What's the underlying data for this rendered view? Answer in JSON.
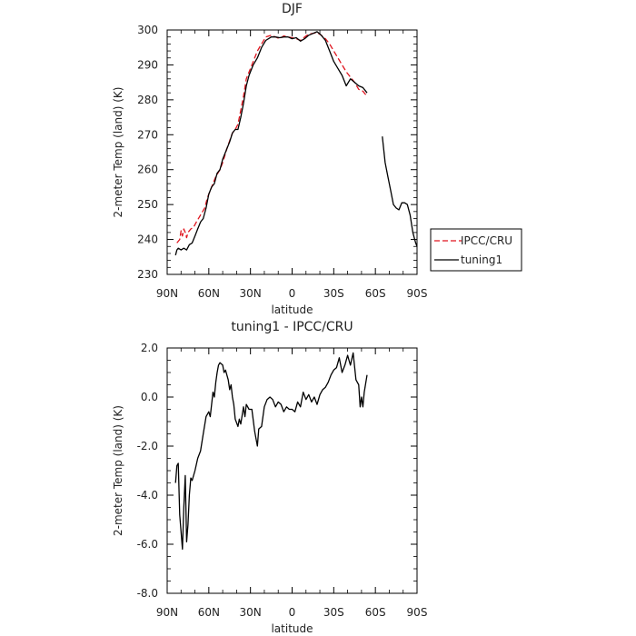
{
  "chart_data": [
    {
      "type": "line",
      "title": "DJF",
      "xlabel": "latitude",
      "ylabel": "2-meter Temp (land) (K)",
      "xlim": [
        90,
        -90
      ],
      "ylim": [
        230,
        300
      ],
      "x_tick_values": [
        90,
        60,
        30,
        0,
        -30,
        -60,
        -90
      ],
      "x_tick_labels": [
        "90N",
        "60N",
        "30N",
        "0",
        "30S",
        "60S",
        "90S"
      ],
      "y_tick_values": [
        230,
        240,
        250,
        260,
        270,
        280,
        290,
        300
      ],
      "y_tick_labels": [
        "230",
        "240",
        "250",
        "260",
        "270",
        "280",
        "290",
        "300"
      ],
      "legend_position": "right",
      "series": [
        {
          "name": "IPCC/CRU",
          "color": "#e0141e",
          "dash": "dashed",
          "segments": [
            [
              [
                83,
                239
              ],
              [
                81,
                240
              ],
              [
                80,
                242.5
              ],
              [
                79,
                241
              ],
              [
                78,
                243
              ],
              [
                77,
                242
              ],
              [
                76,
                240.5
              ],
              [
                75,
                242
              ],
              [
                73,
                243
              ],
              [
                71,
                243.5
              ],
              [
                69,
                245
              ],
              [
                66,
                247
              ],
              [
                63,
                249
              ],
              [
                61,
                252
              ],
              [
                59,
                254
              ],
              [
                57,
                256
              ],
              [
                55,
                258
              ],
              [
                52,
                260
              ],
              [
                50,
                262
              ],
              [
                47,
                266
              ],
              [
                43,
                270.5
              ],
              [
                41,
                271.5
              ],
              [
                39,
                273
              ],
              [
                37,
                277
              ],
              [
                35,
                281
              ],
              [
                33,
                286
              ],
              [
                30,
                289
              ],
              [
                27,
                292
              ],
              [
                25,
                294
              ],
              [
                22,
                296
              ],
              [
                19,
                298
              ],
              [
                15,
                298.5
              ],
              [
                12,
                298
              ],
              [
                9,
                297.5
              ],
              [
                6,
                298.3
              ],
              [
                3,
                298
              ],
              [
                0,
                297.8
              ],
              [
                -3,
                297.5
              ],
              [
                -6,
                297
              ],
              [
                -9,
                298
              ],
              [
                -12,
                298.8
              ],
              [
                -15,
                299
              ],
              [
                -18,
                299.3
              ],
              [
                -21,
                298.5
              ],
              [
                -24,
                297.5
              ],
              [
                -27,
                296
              ],
              [
                -30,
                294
              ],
              [
                -33,
                292
              ],
              [
                -36,
                290
              ],
              [
                -39,
                288
              ],
              [
                -42,
                286.5
              ],
              [
                -45,
                285
              ],
              [
                -48,
                283
              ],
              [
                -51,
                282.5
              ],
              [
                -54,
                281
              ]
            ]
          ]
        },
        {
          "name": "tuning1",
          "color": "#000000",
          "dash": "solid",
          "segments": [
            [
              [
                84,
                235.5
              ],
              [
                83,
                237
              ],
              [
                82,
                237.5
              ],
              [
                80,
                237
              ],
              [
                78,
                237.5
              ],
              [
                76,
                237
              ],
              [
                74,
                238.5
              ],
              [
                72,
                239
              ],
              [
                70,
                241
              ],
              [
                68,
                243
              ],
              [
                66,
                245
              ],
              [
                64,
                246
              ],
              [
                62,
                249
              ],
              [
                60,
                253
              ],
              [
                58,
                255
              ],
              [
                56,
                256
              ],
              [
                54,
                259
              ],
              [
                52,
                260
              ],
              [
                50,
                263
              ],
              [
                47,
                266
              ],
              [
                45,
                268
              ],
              [
                43,
                270.5
              ],
              [
                41,
                271.5
              ],
              [
                39,
                271.5
              ],
              [
                37,
                275
              ],
              [
                35,
                279
              ],
              [
                33,
                284
              ],
              [
                31,
                287
              ],
              [
                28,
                290
              ],
              [
                25,
                292
              ],
              [
                22,
                295
              ],
              [
                19,
                297
              ],
              [
                15,
                298
              ],
              [
                12,
                298
              ],
              [
                9,
                297.8
              ],
              [
                6,
                298
              ],
              [
                3,
                298
              ],
              [
                0,
                297.5
              ],
              [
                -3,
                297.8
              ],
              [
                -6,
                296.8
              ],
              [
                -9,
                297.5
              ],
              [
                -12,
                298.5
              ],
              [
                -15,
                299
              ],
              [
                -18,
                299.5
              ],
              [
                -21,
                298.5
              ],
              [
                -24,
                297
              ],
              [
                -27,
                294
              ],
              [
                -30,
                291
              ],
              [
                -33,
                289
              ],
              [
                -36,
                287
              ],
              [
                -39,
                284
              ],
              [
                -42,
                286
              ],
              [
                -45,
                285
              ],
              [
                -48,
                284
              ],
              [
                -51,
                283.5
              ],
              [
                -54,
                282
              ]
            ],
            [
              [
                -65,
                269.5
              ],
              [
                -67,
                262
              ],
              [
                -69,
                258
              ],
              [
                -71,
                254
              ],
              [
                -73,
                250
              ],
              [
                -75,
                249
              ],
              [
                -77,
                248.5
              ],
              [
                -79,
                250.5
              ],
              [
                -81,
                250.5
              ],
              [
                -83,
                250
              ],
              [
                -85,
                247
              ],
              [
                -87,
                242
              ],
              [
                -89,
                239
              ],
              [
                -90,
                238
              ]
            ]
          ]
        }
      ]
    },
    {
      "type": "line",
      "title": "tuning1 - IPCC/CRU",
      "xlabel": "latitude",
      "ylabel": "2-meter Temp (land) (K)",
      "xlim": [
        90,
        -90
      ],
      "ylim": [
        -8,
        2
      ],
      "x_tick_values": [
        90,
        60,
        30,
        0,
        -30,
        -60,
        -90
      ],
      "x_tick_labels": [
        "90N",
        "60N",
        "30N",
        "0",
        "30S",
        "60S",
        "90S"
      ],
      "y_tick_values": [
        -8,
        -6,
        -4,
        -2,
        0,
        2
      ],
      "y_tick_labels": [
        "-8.0",
        "-6.0",
        "-4.0",
        "-2.0",
        "0.0",
        "2.0"
      ],
      "series": [
        {
          "color": "#000000",
          "dash": "solid",
          "segments": [
            [
              [
                84,
                -3.5
              ],
              [
                83,
                -2.8
              ],
              [
                82,
                -2.7
              ],
              [
                81,
                -4.8
              ],
              [
                80,
                -5.5
              ],
              [
                79,
                -6.2
              ],
              [
                78,
                -4.5
              ],
              [
                77,
                -3.2
              ],
              [
                76,
                -5.9
              ],
              [
                75,
                -5.2
              ],
              [
                74,
                -4.0
              ],
              [
                73,
                -3.3
              ],
              [
                72,
                -3.4
              ],
              [
                70,
                -3.0
              ],
              [
                68,
                -2.5
              ],
              [
                66,
                -2.2
              ],
              [
                64,
                -1.5
              ],
              [
                62,
                -0.8
              ],
              [
                60,
                -0.6
              ],
              [
                59,
                -0.8
              ],
              [
                58,
                -0.3
              ],
              [
                57,
                0.2
              ],
              [
                56,
                0.0
              ],
              [
                55,
                0.6
              ],
              [
                54,
                1.0
              ],
              [
                53,
                1.3
              ],
              [
                52,
                1.4
              ],
              [
                50,
                1.3
              ],
              [
                49,
                1.0
              ],
              [
                48,
                1.1
              ],
              [
                46,
                0.7
              ],
              [
                45,
                0.3
              ],
              [
                44,
                0.5
              ],
              [
                43,
                0.0
              ],
              [
                42,
                -0.3
              ],
              [
                41,
                -0.9
              ],
              [
                39,
                -1.2
              ],
              [
                38,
                -0.9
              ],
              [
                37,
                -1.1
              ],
              [
                35,
                -0.4
              ],
              [
                34,
                -0.8
              ],
              [
                33,
                -0.3
              ],
              [
                31,
                -0.5
              ],
              [
                29,
                -0.5
              ],
              [
                27,
                -1.4
              ],
              [
                25,
                -2.0
              ],
              [
                24,
                -1.3
              ],
              [
                22,
                -1.2
              ],
              [
                20,
                -0.4
              ],
              [
                18,
                -0.1
              ],
              [
                16,
                0.0
              ],
              [
                14,
                -0.1
              ],
              [
                12,
                -0.4
              ],
              [
                10,
                -0.2
              ],
              [
                8,
                -0.3
              ],
              [
                6,
                -0.6
              ],
              [
                4,
                -0.4
              ],
              [
                2,
                -0.5
              ],
              [
                0,
                -0.5
              ],
              [
                -2,
                -0.6
              ],
              [
                -4,
                -0.2
              ],
              [
                -6,
                -0.4
              ],
              [
                -8,
                0.2
              ],
              [
                -10,
                -0.1
              ],
              [
                -12,
                0.1
              ],
              [
                -14,
                -0.2
              ],
              [
                -16,
                0.0
              ],
              [
                -18,
                -0.3
              ],
              [
                -20,
                0.1
              ],
              [
                -22,
                0.3
              ],
              [
                -24,
                0.4
              ],
              [
                -26,
                0.6
              ],
              [
                -28,
                0.9
              ],
              [
                -30,
                1.1
              ],
              [
                -32,
                1.2
              ],
              [
                -34,
                1.6
              ],
              [
                -36,
                1.0
              ],
              [
                -38,
                1.3
              ],
              [
                -40,
                1.7
              ],
              [
                -41,
                1.5
              ],
              [
                -42,
                1.3
              ],
              [
                -44,
                1.8
              ],
              [
                -46,
                0.7
              ],
              [
                -48,
                0.5
              ],
              [
                -49,
                -0.4
              ],
              [
                -50,
                0.0
              ],
              [
                -51,
                -0.4
              ],
              [
                -52,
                0.2
              ],
              [
                -54,
                0.9
              ]
            ]
          ]
        }
      ]
    }
  ]
}
